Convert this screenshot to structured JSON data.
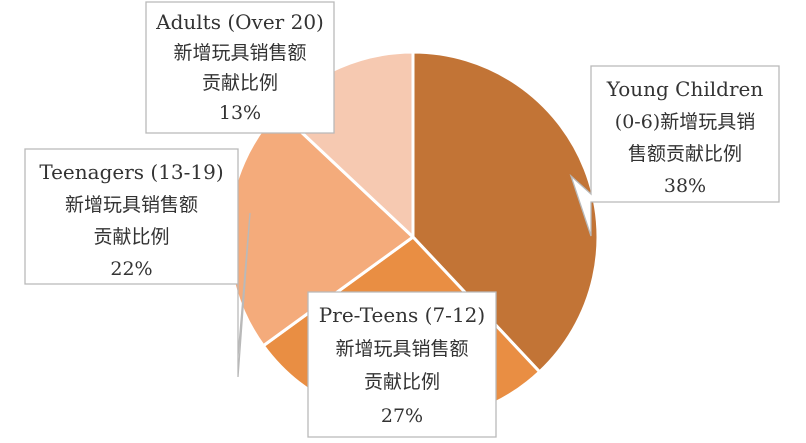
{
  "chart_data": {
    "type": "pie",
    "title": "",
    "slices": [
      {
        "name": "Young Children",
        "value": 38,
        "color": "#C27436",
        "label_lines": [
          "Young Children",
          "(0-6)新增玩具销",
          "售额贡献比例",
          "38%"
        ]
      },
      {
        "name": "Pre-Teens",
        "value": 27,
        "color": "#E98E43",
        "label_lines": [
          "Pre-Teens (7-12)",
          "新增玩具销售额",
          "贡献比例",
          "27%"
        ]
      },
      {
        "name": "Teenagers",
        "value": 22,
        "color": "#F4AB7B",
        "label_lines": [
          "Teenagers (13-19)",
          "新增玩具销售额",
          "贡献比例",
          "22%"
        ]
      },
      {
        "name": "Adults",
        "value": 13,
        "color": "#F6C9B1",
        "label_lines": [
          "Adults (Over 20)",
          "新增玩具销售额",
          "贡献比例",
          "13%"
        ]
      }
    ],
    "legend": "none",
    "start_angle": "12 o'clock, clockwise"
  }
}
